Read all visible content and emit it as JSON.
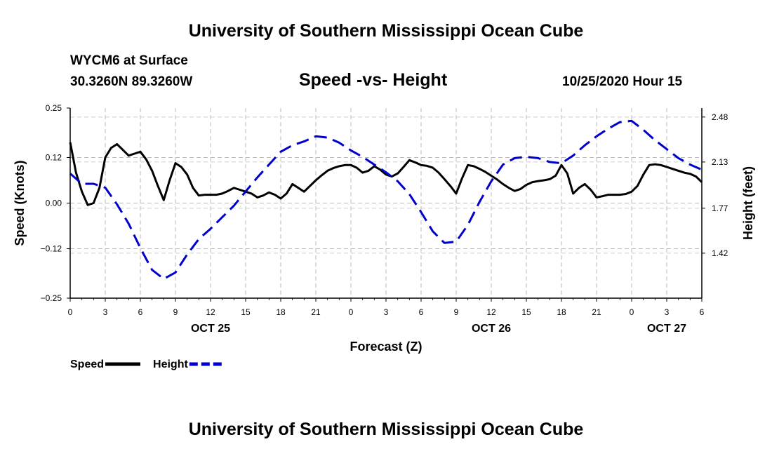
{
  "header": {
    "title": "University of Southern Mississippi Ocean Cube",
    "station": "WYCM6 at Surface",
    "coords": "30.3260N 89.3260W",
    "chart_title": "Speed -vs- Height",
    "datetime": "10/25/2020 Hour 15"
  },
  "footer": {
    "title": "University of Southern Mississippi Ocean Cube"
  },
  "chart_data": {
    "type": "line",
    "title": "Speed -vs- Height",
    "xlabel": "Forecast (Z)",
    "ylabel": "Speed (Knots)",
    "y2label": "Height (feet)",
    "xlim": [
      0,
      54
    ],
    "ylim": [
      -0.25,
      0.25
    ],
    "y2lim": [
      1.07,
      2.55
    ],
    "grid": true,
    "x_ticks": [
      0,
      3,
      6,
      9,
      12,
      15,
      18,
      21,
      24,
      27,
      30,
      33,
      36,
      39,
      42,
      45,
      48,
      51,
      54
    ],
    "x_tick_labels": [
      "0",
      "3",
      "6",
      "9",
      "12",
      "15",
      "18",
      "21",
      "0",
      "3",
      "6",
      "9",
      "12",
      "15",
      "18",
      "21",
      "0",
      "3",
      "6"
    ],
    "x_date_labels": [
      {
        "x": 12,
        "label": "OCT 25"
      },
      {
        "x": 36,
        "label": "OCT 26"
      },
      {
        "x": 51,
        "label": "OCT 27"
      }
    ],
    "y_ticks": [
      -0.25,
      -0.12,
      0.0,
      0.12,
      0.25
    ],
    "y_tick_labels": [
      "−0.25",
      "−0.12",
      "0.00",
      "0.12",
      "0.25"
    ],
    "y2_ticks": [
      1.42,
      1.77,
      2.13,
      2.48
    ],
    "y2_tick_labels": [
      "1.42",
      "1.77",
      "2.13",
      "2.48"
    ],
    "legend_position": "bottom-left",
    "legend": [
      {
        "name": "Speed",
        "color": "#000000",
        "dash": false
      },
      {
        "name": "Height",
        "color": "#0000cc",
        "dash": true
      }
    ],
    "series": [
      {
        "name": "Speed",
        "axis": "left",
        "color": "#000000",
        "x": [
          0,
          0.5,
          1,
          1.5,
          2,
          2.5,
          3,
          3.5,
          4,
          4.5,
          5,
          5.5,
          6,
          6.5,
          7,
          7.5,
          8,
          8.5,
          9,
          9.5,
          10,
          10.5,
          11,
          11.5,
          12,
          12.5,
          13,
          13.5,
          14,
          14.5,
          15,
          15.5,
          16,
          16.5,
          17,
          17.5,
          18,
          18.5,
          19,
          19.5,
          20,
          20.5,
          21,
          21.5,
          22,
          22.5,
          23,
          23.5,
          24,
          24.5,
          25,
          25.5,
          26,
          26.5,
          27,
          27.5,
          28,
          28.5,
          29,
          29.5,
          30,
          30.5,
          31,
          31.5,
          32,
          32.5,
          33,
          33.5,
          34,
          34.5,
          35,
          35.5,
          36,
          36.5,
          37,
          37.5,
          38,
          38.5,
          39,
          39.5,
          40,
          40.5,
          41,
          41.5,
          42,
          42.5,
          43,
          43.5,
          44,
          44.5,
          45,
          45.5,
          46,
          46.5,
          47,
          47.5,
          48,
          48.5,
          49,
          49.5,
          50,
          50.5,
          51,
          51.5,
          52,
          52.5,
          53,
          53.5,
          54
        ],
        "values": [
          0.16,
          0.08,
          0.03,
          -0.005,
          0,
          0.04,
          0.12,
          0.145,
          0.155,
          0.14,
          0.125,
          0.13,
          0.135,
          0.115,
          0.085,
          0.045,
          0.008,
          0.06,
          0.105,
          0.095,
          0.075,
          0.04,
          0.02,
          0.022,
          0.022,
          0.022,
          0.025,
          0.032,
          0.04,
          0.035,
          0.03,
          0.025,
          0.015,
          0.02,
          0.028,
          0.022,
          0.012,
          0.025,
          0.05,
          0.04,
          0.03,
          0.045,
          0.06,
          0.073,
          0.085,
          0.092,
          0.097,
          0.1,
          0.1,
          0.093,
          0.08,
          0.085,
          0.097,
          0.088,
          0.075,
          0.07,
          0.078,
          0.095,
          0.113,
          0.107,
          0.1,
          0.098,
          0.093,
          0.08,
          0.063,
          0.045,
          0.025,
          0.065,
          0.1,
          0.097,
          0.09,
          0.082,
          0.072,
          0.062,
          0.05,
          0.04,
          0.032,
          0.037,
          0.048,
          0.055,
          0.058,
          0.06,
          0.063,
          0.072,
          0.1,
          0.078,
          0.025,
          0.04,
          0.05,
          0.035,
          0.015,
          0.018,
          0.022,
          0.022,
          0.022,
          0.024,
          0.03,
          0.045,
          0.075,
          0.1,
          0.102,
          0.1,
          0.095,
          0.09,
          0.085,
          0.08,
          0.077,
          0.07,
          0.055
        ]
      },
      {
        "name": "Height",
        "axis": "right",
        "color": "#0000cc",
        "x": [
          0,
          1,
          2,
          3,
          4,
          5,
          6,
          7,
          8,
          9,
          10,
          11,
          12,
          13,
          14,
          15,
          16,
          17,
          18,
          19,
          20,
          21,
          22,
          23,
          24,
          25,
          26,
          27,
          28,
          29,
          30,
          31,
          32,
          33,
          34,
          35,
          36,
          37,
          38,
          39,
          40,
          41,
          42,
          43,
          44,
          45,
          46,
          47,
          48,
          49,
          50,
          51,
          52,
          53,
          54
        ],
        "values": [
          2.04,
          1.96,
          1.96,
          1.93,
          1.8,
          1.65,
          1.46,
          1.29,
          1.22,
          1.27,
          1.41,
          1.53,
          1.61,
          1.7,
          1.79,
          1.9,
          2.01,
          2.11,
          2.21,
          2.26,
          2.29,
          2.33,
          2.32,
          2.28,
          2.22,
          2.17,
          2.11,
          2.05,
          1.98,
          1.88,
          1.74,
          1.59,
          1.5,
          1.51,
          1.64,
          1.82,
          1.98,
          2.11,
          2.16,
          2.17,
          2.16,
          2.13,
          2.12,
          2.18,
          2.26,
          2.33,
          2.39,
          2.44,
          2.45,
          2.38,
          2.3,
          2.23,
          2.16,
          2.11,
          2.07
        ]
      }
    ]
  }
}
